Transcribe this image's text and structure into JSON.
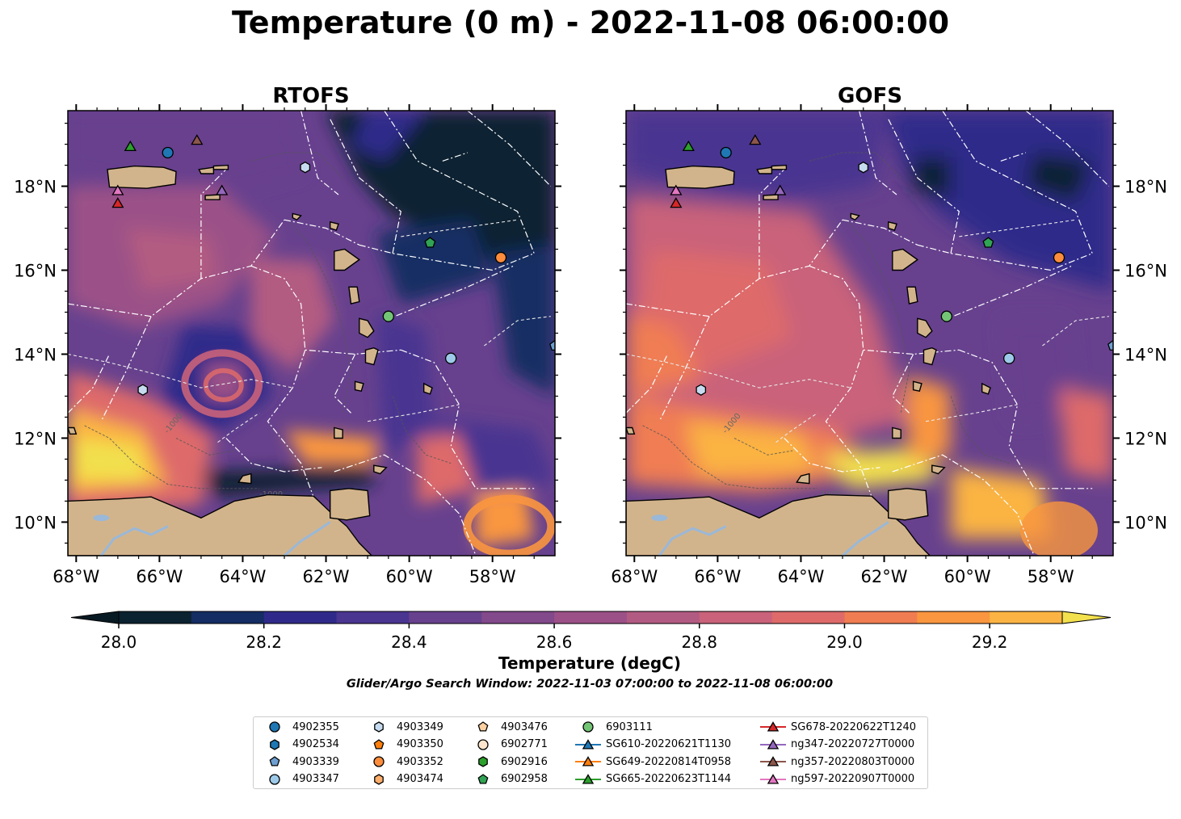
{
  "figure": {
    "title": "Temperature (0 m) - 2022-11-08 06:00:00",
    "search_window": "Glider/Argo Search Window: 2022-11-03 07:00:00 to 2022-11-08 06:00:00"
  },
  "colorbar": {
    "label": "Temperature (degC)",
    "min": 28.0,
    "max": 29.3,
    "step": 0.1,
    "ticks": [
      "28.0",
      "28.2",
      "28.4",
      "28.6",
      "28.8",
      "29.0",
      "29.2"
    ],
    "extend": "both",
    "colors": [
      "#0b2230",
      "#142d63",
      "#2f2a8a",
      "#4a3591",
      "#67418e",
      "#82498b",
      "#9b5187",
      "#b25b82",
      "#c9627a",
      "#de6a6a",
      "#f07d52",
      "#f9963f",
      "#fbb443",
      "#f2e04e"
    ],
    "under_color": "#081a24",
    "over_color": "#f2e04e"
  },
  "map": {
    "lon_range": [
      -68.2,
      -56.5
    ],
    "lat_range": [
      9.2,
      19.8
    ],
    "lon_ticks": [
      "68°W",
      "66°W",
      "64°W",
      "62°W",
      "60°W",
      "58°W"
    ],
    "lat_ticks": [
      "10°N",
      "12°N",
      "14°N",
      "16°N",
      "18°N"
    ],
    "land_color": "#d2b48c",
    "bathymetry_label": "-1000"
  },
  "panels": [
    {
      "id": "rtofs",
      "title": "RTOFS"
    },
    {
      "id": "gofs",
      "title": "GOFS"
    }
  ],
  "legend": [
    {
      "name": "4902355",
      "marker": "circle",
      "color": "#1f77b4"
    },
    {
      "name": "4902534",
      "marker": "hexagon",
      "color": "#1f77b4"
    },
    {
      "name": "4903339",
      "marker": "pentagon",
      "color": "#6e9fd0"
    },
    {
      "name": "4903347",
      "marker": "circle",
      "color": "#9ecae9"
    },
    {
      "name": "4903349",
      "marker": "hexagon",
      "color": "#c6dbef"
    },
    {
      "name": "4903350",
      "marker": "pentagon",
      "color": "#ff7f0e"
    },
    {
      "name": "4903352",
      "marker": "circle",
      "color": "#fd8d3c"
    },
    {
      "name": "4903474",
      "marker": "hexagon",
      "color": "#fdae6b"
    },
    {
      "name": "4903476",
      "marker": "pentagon",
      "color": "#fdd0a2"
    },
    {
      "name": "6902771",
      "marker": "circle",
      "color": "#fee6ce"
    },
    {
      "name": "6902916",
      "marker": "hexagon",
      "color": "#2ca02c"
    },
    {
      "name": "6902958",
      "marker": "pentagon",
      "color": "#31a354"
    },
    {
      "name": "6903111",
      "marker": "circle",
      "color": "#74c476"
    },
    {
      "name": "SG610-20220621T1130",
      "marker": "triangle",
      "color": "#1f77b4",
      "line": true
    },
    {
      "name": "SG649-20220814T0958",
      "marker": "triangle",
      "color": "#ff7f0e",
      "line": true
    },
    {
      "name": "SG665-20220623T1144",
      "marker": "triangle",
      "color": "#2ca02c",
      "line": true
    },
    {
      "name": "SG678-20220622T1240",
      "marker": "triangle",
      "color": "#d62728",
      "line": true
    },
    {
      "name": "ng347-20220727T0000",
      "marker": "triangle",
      "color": "#9467bd",
      "line": true
    },
    {
      "name": "ng357-20220803T0000",
      "marker": "triangle",
      "color": "#8c564b",
      "line": true
    },
    {
      "name": "ng597-20220907T0000",
      "marker": "triangle",
      "color": "#e377c2",
      "line": true
    }
  ],
  "observations": [
    {
      "id": "4902355",
      "lon": -65.8,
      "lat": 18.8
    },
    {
      "id": "4903349",
      "lon": -62.5,
      "lat": 18.45
    },
    {
      "id": "6902958",
      "lon": -59.5,
      "lat": 16.65
    },
    {
      "id": "4903352",
      "lon": -57.8,
      "lat": 16.3
    },
    {
      "id": "6903111",
      "lon": -60.5,
      "lat": 14.9
    },
    {
      "id": "4903347",
      "lon": -59.0,
      "lat": 13.9
    },
    {
      "id": "4903339",
      "lon": -56.5,
      "lat": 14.2
    },
    {
      "id": "4903349",
      "lon": -66.4,
      "lat": 13.15
    },
    {
      "id": "SG665-20220623T1144",
      "lon": -66.7,
      "lat": 18.95
    },
    {
      "id": "ng357-20220803T0000",
      "lon": -65.1,
      "lat": 19.1
    },
    {
      "id": "ng347-20220727T0000",
      "lon": -64.5,
      "lat": 17.9
    },
    {
      "id": "ng597-20220907T0000",
      "lon": -67.0,
      "lat": 17.9
    },
    {
      "id": "SG678-20220622T1240",
      "lon": -67.0,
      "lat": 17.6
    }
  ]
}
